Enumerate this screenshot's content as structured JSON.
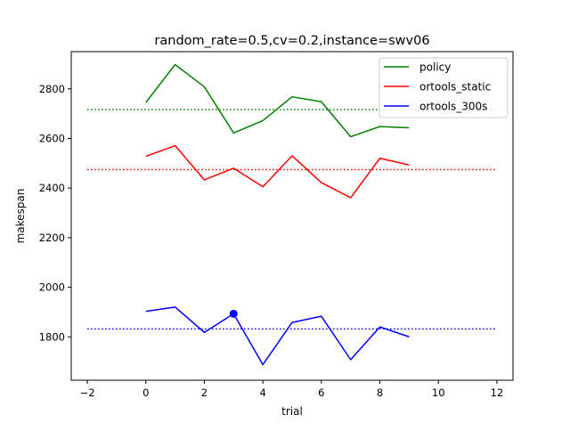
{
  "chart_data": {
    "type": "line",
    "title": "random_rate=0.5,cv=0.2,instance=swv06",
    "xlabel": "trial",
    "ylabel": "makespan",
    "xlim": [
      -2.55,
      12.55
    ],
    "ylim": [
      1625,
      2950
    ],
    "xticks": [
      -2,
      0,
      2,
      4,
      6,
      8,
      10,
      12
    ],
    "xtick_labels": [
      "−2",
      "0",
      "2",
      "4",
      "6",
      "8",
      "10",
      "12"
    ],
    "yticks": [
      1800,
      2000,
      2200,
      2400,
      2600,
      2800
    ],
    "ytick_labels": [
      "1800",
      "2000",
      "2200",
      "2400",
      "2600",
      "2800"
    ],
    "grid": false,
    "legend_position": "top-right",
    "x": [
      0,
      1,
      2,
      3,
      4,
      5,
      6,
      7,
      8,
      9
    ],
    "series": [
      {
        "name": "policy",
        "color": "#008000",
        "values": [
          2745,
          2898,
          2808,
          2622,
          2672,
          2768,
          2748,
          2607,
          2648,
          2643
        ]
      },
      {
        "name": "ortools_static",
        "color": "#ff0000",
        "values": [
          2528,
          2571,
          2433,
          2480,
          2405,
          2530,
          2422,
          2361,
          2520,
          2493
        ]
      },
      {
        "name": "ortools_300s",
        "color": "#0000ff",
        "values": [
          1903,
          1920,
          1818,
          1893,
          1688,
          1858,
          1883,
          1708,
          1840,
          1800
        ]
      }
    ],
    "reference_lines": [
      {
        "series": "policy",
        "color": "#008000",
        "y": 2716,
        "x_range": [
          -2,
          12
        ],
        "style": "dotted"
      },
      {
        "series": "ortools_static",
        "color": "#ff0000",
        "y": 2474,
        "x_range": [
          -2,
          12
        ],
        "style": "dotted"
      },
      {
        "series": "ortools_300s",
        "color": "#0000ff",
        "y": 1832,
        "x_range": [
          -2,
          12
        ],
        "style": "dotted"
      }
    ],
    "markers": [
      {
        "series": "ortools_300s",
        "color": "#0000ff",
        "x": 3,
        "y": 1893
      }
    ]
  }
}
